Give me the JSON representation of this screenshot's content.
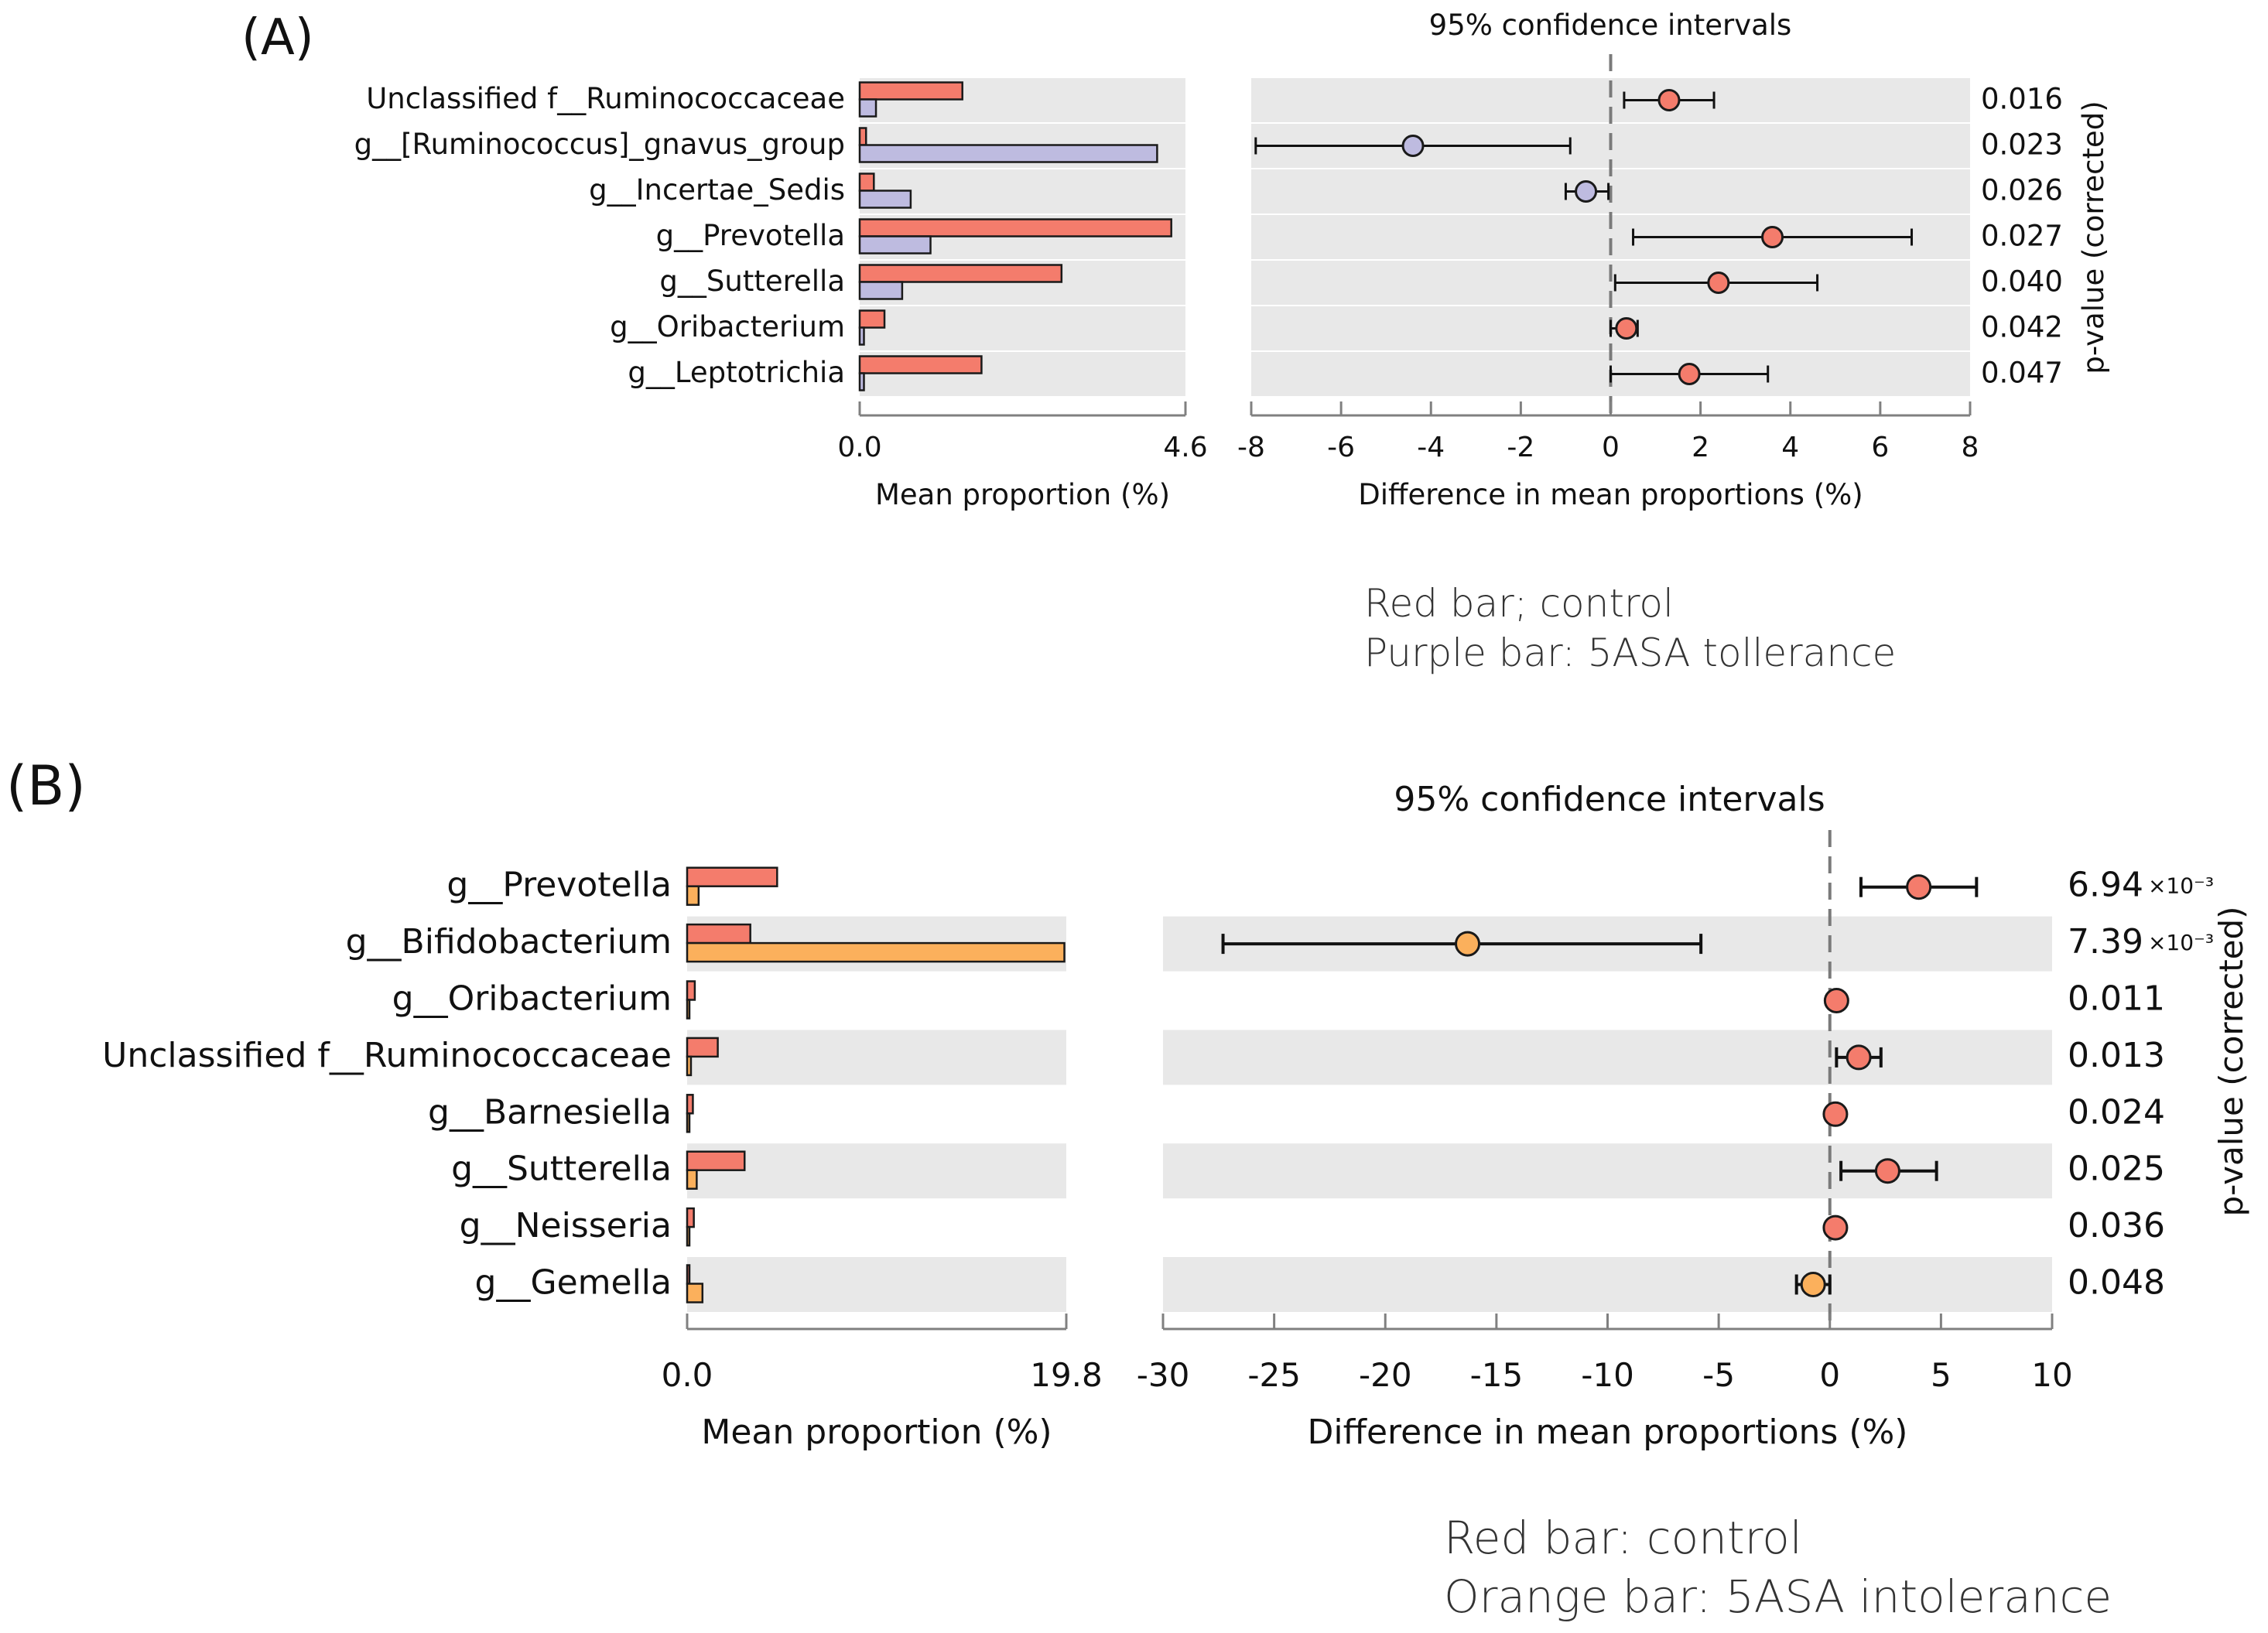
{
  "colors": {
    "red": "#f47c6c",
    "purple": "#bebbe0",
    "orange": "#fbb05c",
    "band": "#e8e8e8",
    "axis": "#808080",
    "text": "#111111"
  },
  "panels": [
    {
      "label": "(A)",
      "ci_title": "95% confidence intervals",
      "pvalue_label": "p-value (corrected)",
      "notes": [
        "Red bar; control",
        "Purple bar: 5ASA tollerance"
      ],
      "chart_data": {
        "type": "extended-error-bar",
        "categories": [
          "Unclassified f__Ruminococcaceae",
          "g__[Ruminococcus]_gnavus_group",
          "g__Incertae_Sedis",
          "g__Prevotella",
          "g__Sutterella",
          "g__Oribacterium",
          "g__Leptotrichia"
        ],
        "mean_proportion": {
          "xlabel": "Mean proportion (%)",
          "xlim": [
            0,
            4.6
          ],
          "tick_labels": [
            "0.0",
            "4.6"
          ],
          "series": [
            {
              "name": "control",
              "color": "red",
              "values": [
                1.45,
                0.09,
                0.2,
                4.4,
                2.85,
                0.35,
                1.72
              ]
            },
            {
              "name": "5ASA tollerance",
              "color": "purple",
              "values": [
                0.23,
                4.2,
                0.72,
                1.0,
                0.6,
                0.06,
                0.06
              ]
            }
          ]
        },
        "difference": {
          "xlabel": "Difference in mean proportions (%)",
          "xlim": [
            -8,
            8
          ],
          "ticks": [
            -8,
            -6,
            -4,
            -2,
            0,
            2,
            4,
            6,
            8
          ],
          "tick_labels": [
            "-8",
            "-6",
            "-4",
            "-2",
            "0",
            "2",
            "4",
            "6",
            "8"
          ],
          "estimates": [
            1.3,
            -4.4,
            -0.55,
            3.6,
            2.4,
            0.35,
            1.75
          ],
          "ci_lower": [
            0.3,
            -7.9,
            -1.0,
            0.5,
            0.1,
            0.0,
            0.0
          ],
          "ci_upper": [
            2.3,
            -0.9,
            -0.05,
            6.7,
            4.6,
            0.6,
            3.5
          ],
          "colors": [
            "red",
            "purple",
            "purple",
            "red",
            "red",
            "red",
            "red"
          ]
        },
        "p_values": [
          {
            "value": "0.016",
            "exp": ""
          },
          {
            "value": "0.023",
            "exp": ""
          },
          {
            "value": "0.026",
            "exp": ""
          },
          {
            "value": "0.027",
            "exp": ""
          },
          {
            "value": "0.040",
            "exp": ""
          },
          {
            "value": "0.042",
            "exp": ""
          },
          {
            "value": "0.047",
            "exp": ""
          }
        ]
      }
    },
    {
      "label": "(B)",
      "ci_title": "95% confidence intervals",
      "pvalue_label": "p-value (corrected)",
      "notes": [
        "Red bar: control",
        "Orange bar: 5ASA intolerance"
      ],
      "chart_data": {
        "type": "extended-error-bar",
        "categories": [
          "g__Prevotella",
          "g__Bifidobacterium",
          "g__Oribacterium",
          "Unclassified f__Ruminococcaceae",
          "g__Barnesiella",
          "g__Sutterella",
          "g__Neisseria",
          "g__Gemella"
        ],
        "mean_proportion": {
          "xlabel": "Mean proportion (%)",
          "xlim": [
            0,
            19.8
          ],
          "tick_labels": [
            "0.0",
            "19.8"
          ],
          "series": [
            {
              "name": "control",
              "color": "red",
              "values": [
                4.7,
                3.3,
                0.4,
                1.6,
                0.3,
                3.0,
                0.35,
                0.12
              ]
            },
            {
              "name": "5ASA intolerance",
              "color": "orange",
              "values": [
                0.6,
                19.7,
                0.12,
                0.2,
                0.08,
                0.5,
                0.08,
                0.8
              ]
            }
          ]
        },
        "difference": {
          "xlabel": "Difference in mean proportions (%)",
          "xlim": [
            -30,
            10
          ],
          "ticks": [
            -30,
            -25,
            -20,
            -15,
            -10,
            -5,
            0,
            5,
            10
          ],
          "tick_labels": [
            "-30",
            "-25",
            "-20",
            "-15",
            "-10",
            "-5",
            "0",
            "5",
            "10"
          ],
          "estimates": [
            4.0,
            -16.3,
            0.3,
            1.3,
            0.25,
            2.6,
            0.25,
            -0.75
          ],
          "ci_lower": [
            1.4,
            -27.3,
            0.1,
            0.3,
            0.05,
            0.5,
            0.05,
            -1.5
          ],
          "ci_upper": [
            6.6,
            -5.8,
            0.5,
            2.3,
            0.45,
            4.8,
            0.45,
            0.0
          ],
          "colors": [
            "red",
            "orange",
            "red",
            "red",
            "red",
            "red",
            "red",
            "orange"
          ]
        },
        "p_values": [
          {
            "value": "6.94",
            "exp": "×10⁻³"
          },
          {
            "value": "7.39",
            "exp": "×10⁻³"
          },
          {
            "value": "0.011",
            "exp": ""
          },
          {
            "value": "0.013",
            "exp": ""
          },
          {
            "value": "0.024",
            "exp": ""
          },
          {
            "value": "0.025",
            "exp": ""
          },
          {
            "value": "0.036",
            "exp": ""
          },
          {
            "value": "0.048",
            "exp": ""
          }
        ]
      }
    }
  ]
}
